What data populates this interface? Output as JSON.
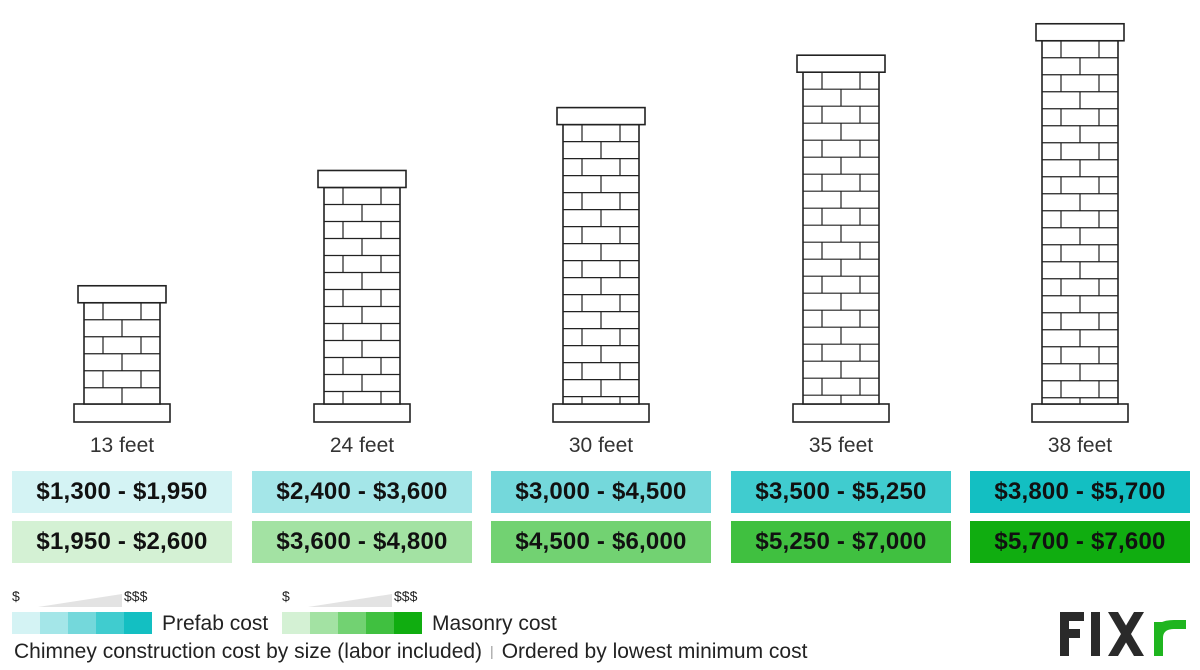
{
  "chart_data": {
    "type": "bar",
    "title": "",
    "categories": [
      "13 feet",
      "24 feet",
      "30 feet",
      "35 feet",
      "38 feet"
    ],
    "heights_ft": [
      13,
      24,
      30,
      35,
      38
    ],
    "series": [
      {
        "name": "Prefab cost",
        "ranges": [
          [
            1300,
            1950
          ],
          [
            2400,
            3600
          ],
          [
            3000,
            4500
          ],
          [
            3500,
            5250
          ],
          [
            3800,
            5700
          ]
        ],
        "labels": [
          "$1,300 - $1,950",
          "$2,400 - $3,600",
          "$3,000 - $4,500",
          "$3,500 - $5,250",
          "$3,800 - $5,700"
        ],
        "colors": [
          "#d4f3f4",
          "#a4e6e8",
          "#74d8db",
          "#40cccf",
          "#13bfc2"
        ]
      },
      {
        "name": "Masonry cost",
        "ranges": [
          [
            1950,
            2600
          ],
          [
            3600,
            4800
          ],
          [
            4500,
            6000
          ],
          [
            5250,
            7000
          ],
          [
            5700,
            7600
          ]
        ],
        "labels": [
          "$1,950 - $2,600",
          "$3,600 - $4,800",
          "$4,500 - $6,000",
          "$5,250 - $7,000",
          "$5,700 - $7,600"
        ],
        "colors": [
          "#d4f1d4",
          "#a3e2a3",
          "#72d272",
          "#40c040",
          "#10ad10"
        ]
      }
    ],
    "legend": {
      "low_symbol": "$",
      "high_symbol": "$$$",
      "prefab_label": "Prefab cost",
      "masonry_label": "Masonry cost",
      "placement": "bottom-left"
    }
  },
  "footer": {
    "caption": "Chimney construction cost by size (labor included)",
    "separator": "|",
    "order_note": "Ordered by lowest minimum cost"
  },
  "brand": {
    "name": "FIXR",
    "color": "#2a2a2a",
    "accent": "#1fb51f"
  }
}
